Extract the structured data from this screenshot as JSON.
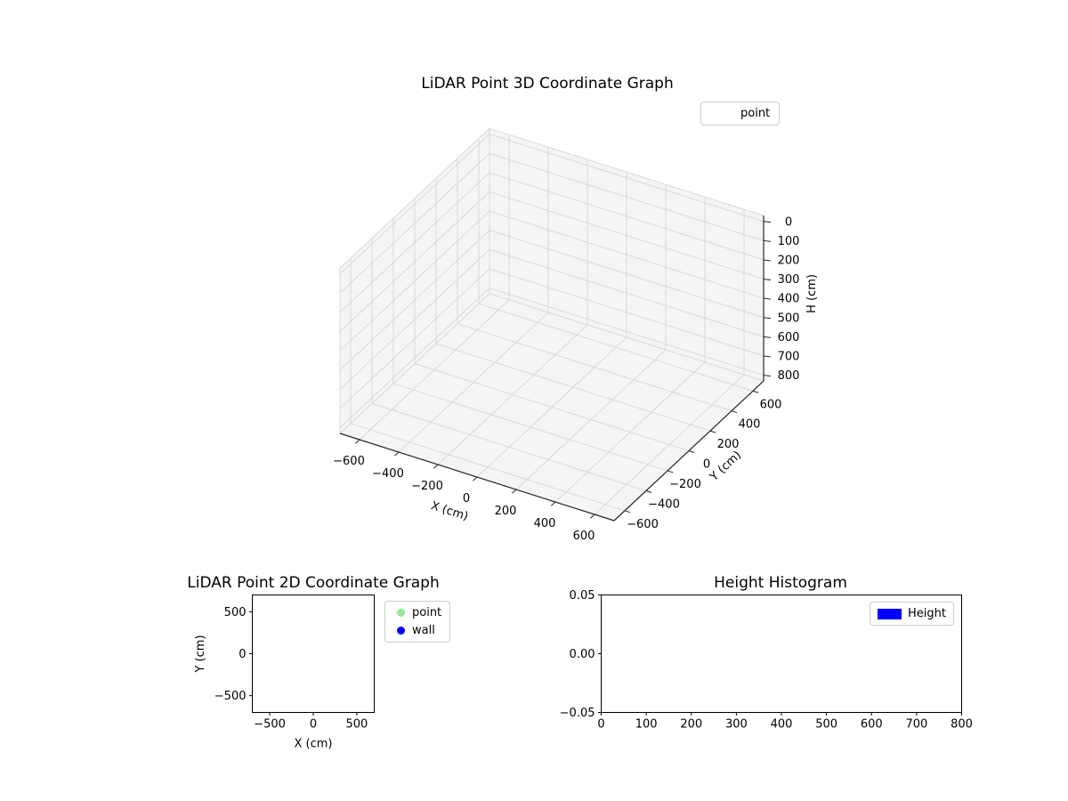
{
  "window": {
    "background": "#ffffff"
  },
  "chart_data": [
    {
      "id": "lidar-3d",
      "type": "scatter3d",
      "title": "LiDAR Point 3D Coordinate Graph",
      "xlabel": "X (cm)",
      "ylabel": "Y (cm)",
      "zlabel": "H (cm)",
      "xlim": [
        -700,
        700
      ],
      "ylim": [
        -700,
        700
      ],
      "zlim": [
        0,
        800
      ],
      "z_axis_inverted": true,
      "xticks": [
        -600,
        -400,
        -200,
        0,
        200,
        400,
        600
      ],
      "yticks": [
        -600,
        -400,
        -200,
        0,
        200,
        400,
        600
      ],
      "zticks": [
        0,
        100,
        200,
        300,
        400,
        500,
        600,
        700,
        800
      ],
      "grid": true,
      "legend": {
        "position": "upper right",
        "entries": [
          {
            "label": "point",
            "marker": "blank"
          }
        ]
      },
      "series": [
        {
          "name": "point",
          "points": []
        }
      ],
      "colors": {
        "pane": "#f5f5f5",
        "grid": "#d9d9d9",
        "axis_line": "#262626",
        "text": "#000000"
      }
    },
    {
      "id": "lidar-2d",
      "type": "scatter",
      "title": "LiDAR Point 2D Coordinate Graph",
      "xlabel": "X (cm)",
      "ylabel": "Y (cm)",
      "xlim": [
        -700,
        700
      ],
      "ylim": [
        -700,
        700
      ],
      "xticks": [
        -500,
        0,
        500
      ],
      "yticks": [
        -500,
        0,
        500
      ],
      "grid": false,
      "legend": {
        "position": "outside upper right",
        "entries": [
          {
            "label": "point",
            "color": "#90ee90",
            "marker": "circle"
          },
          {
            "label": "wall",
            "color": "#0000ff",
            "marker": "circle"
          }
        ]
      },
      "series": [
        {
          "name": "point",
          "color": "#90ee90",
          "points": []
        },
        {
          "name": "wall",
          "color": "#0000ff",
          "points": []
        }
      ]
    },
    {
      "id": "height-histogram",
      "type": "bar",
      "title": "Height Histogram",
      "xlabel": "",
      "ylabel": "",
      "xlim": [
        0,
        800
      ],
      "ylim": [
        -0.05,
        0.05
      ],
      "xticks": [
        0,
        100,
        200,
        300,
        400,
        500,
        600,
        700,
        800
      ],
      "yticks": [
        -0.05,
        0,
        0.05
      ],
      "grid": false,
      "legend": {
        "position": "upper right",
        "entries": [
          {
            "label": "Height",
            "color": "#0000ff",
            "marker": "rect"
          }
        ]
      },
      "values": []
    }
  ]
}
